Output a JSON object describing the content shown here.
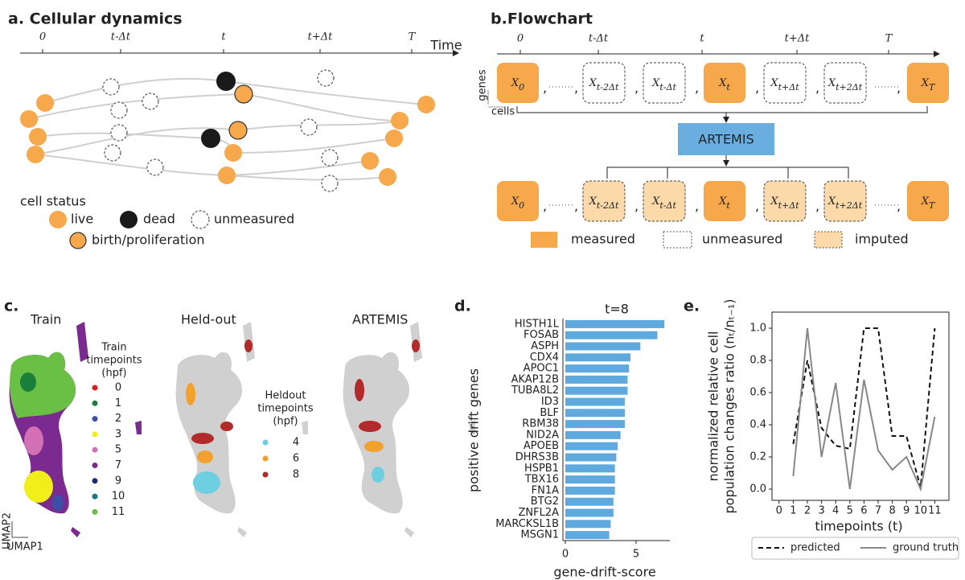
{
  "panel_a": {
    "title": "a. Cellular dynamics",
    "timeline": [
      "0",
      "t-Δt",
      "t",
      "t+Δt",
      "T"
    ],
    "axis_label": "Time",
    "legend_title": "cell status",
    "legend": [
      "live",
      "dead",
      "unmeasured",
      "birth/proliferation"
    ]
  },
  "panel_b": {
    "title": "b.Flowchart",
    "timeline": [
      "0",
      "t-Δt",
      "t",
      "t+Δt",
      "T"
    ],
    "boxes": [
      {
        "main": "X",
        "sub": "0"
      },
      {
        "main": "X",
        "sub": "t-2Δt"
      },
      {
        "main": "X",
        "sub": "t-Δt"
      },
      {
        "main": "X",
        "sub": "t"
      },
      {
        "main": "X",
        "sub": "t+Δt"
      },
      {
        "main": "X",
        "sub": "t+2Δt"
      },
      {
        "main": "X",
        "sub": "T"
      }
    ],
    "comma": ",",
    "genes": "genes",
    "cells": "cells",
    "model": "ARTEMIS",
    "legend": [
      "measured",
      "unmeasured",
      "imputed"
    ]
  },
  "panel_c": {
    "label": "c.",
    "titles": [
      "Train",
      "Held-out",
      "ARTEMIS"
    ],
    "train_legend_title": [
      "Train",
      "timepoints",
      "(hpf)"
    ],
    "train_timepoints": [
      "0",
      "1",
      "2",
      "3",
      "5",
      "7",
      "9",
      "10",
      "11"
    ],
    "train_colors": [
      "#e41a1c",
      "#1a7f3a",
      "#3b4fa8",
      "#f2ee1a",
      "#d36fb5",
      "#7b2a8f",
      "#1e2a78",
      "#167d7d",
      "#6abf45"
    ],
    "heldout_legend_title": [
      "Heldout",
      "timepoints",
      "(hpf)"
    ],
    "heldout_timepoints": [
      "4",
      "6",
      "8"
    ],
    "heldout_colors": [
      "#6ecfe0",
      "#f2a22c",
      "#b22a2a"
    ],
    "axis_x": "UMAP1",
    "axis_y": "UMAP2"
  },
  "chart_data": [
    {
      "type": "barh",
      "label": "d.",
      "title": "t=8",
      "xlabel": "gene-drift-score",
      "ylabel": "positive drift genes",
      "categories": [
        "HISTH1L",
        "FOSAB",
        "ASPH",
        "CDX4",
        "APOC1",
        "AKAP12B",
        "TUBA8L2",
        "ID3",
        "BLF",
        "RBM38",
        "NID2A",
        "APOEB",
        "DHRS3B",
        "HSPB1",
        "TBX16",
        "FN1A",
        "BTG2",
        "ZNFL2A",
        "MARCKSL1B",
        "MSGN1"
      ],
      "values": [
        7.0,
        6.5,
        5.3,
        4.6,
        4.5,
        4.4,
        4.4,
        4.2,
        4.2,
        4.2,
        3.9,
        3.7,
        3.6,
        3.5,
        3.5,
        3.5,
        3.4,
        3.4,
        3.2,
        3.1
      ],
      "color": "#5ea9dd",
      "xlim": [
        0,
        7.3
      ],
      "xticks": [
        0,
        5
      ]
    },
    {
      "type": "line",
      "label": "e.",
      "xlabel": "timepoints (t)",
      "ylabel": [
        "normalized relative cell",
        "population changes ratio (nₜ/nₜ₋₁)"
      ],
      "x": [
        1,
        2,
        3,
        4,
        5,
        6,
        7,
        8,
        9,
        10,
        11
      ],
      "series": [
        {
          "name": "predicted",
          "color": "#111111",
          "dash": "dashed",
          "values": [
            0.28,
            0.8,
            0.38,
            0.27,
            0.25,
            1.0,
            1.0,
            0.33,
            0.33,
            0.01,
            1.0
          ]
        },
        {
          "name": "ground truth",
          "color": "#888888",
          "dash": "solid",
          "values": [
            0.08,
            1.0,
            0.2,
            0.66,
            0.0,
            0.68,
            0.24,
            0.12,
            0.2,
            0.0,
            0.45
          ]
        }
      ],
      "xlim": [
        -0.5,
        12
      ],
      "xticks": [
        0,
        1,
        2,
        3,
        4,
        5,
        6,
        7,
        8,
        9,
        10,
        11
      ],
      "ylim": [
        -0.07,
        1.1
      ],
      "yticks": [
        {
          "value": 0,
          "label": "0.0"
        },
        {
          "value": 0.2,
          "label": "0.2"
        },
        {
          "value": 0.4,
          "label": "0.4"
        },
        {
          "value": 0.6,
          "label": "0.6"
        },
        {
          "value": 0.8,
          "label": "0.8"
        },
        {
          "value": 1.0,
          "label": "1.0"
        }
      ],
      "legend": "bottom"
    }
  ]
}
